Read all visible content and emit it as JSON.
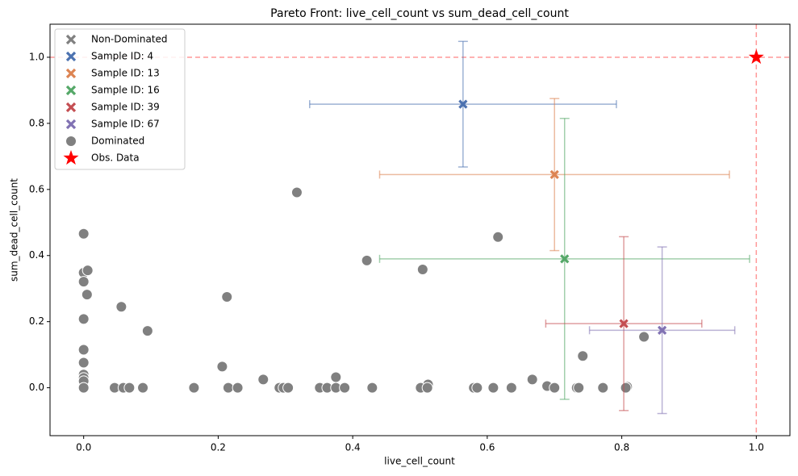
{
  "chart_data": {
    "type": "scatter",
    "title": "Pareto Front: live_cell_count vs sum_dead_cell_count",
    "x_label": "live_cell_count",
    "y_label": "sum_dead_cell_count",
    "xlim": [
      -0.05,
      1.05
    ],
    "ylim": [
      -0.145,
      1.1
    ],
    "xticks": [
      {
        "value": 0,
        "label": "0.0"
      },
      {
        "value": 0.2,
        "label": "0.2"
      },
      {
        "value": 0.4,
        "label": "0.4"
      },
      {
        "value": 0.6,
        "label": "0.6"
      },
      {
        "value": 0.8,
        "label": "0.8"
      },
      {
        "value": 1,
        "label": "1.0"
      }
    ],
    "yticks": [
      {
        "value": 0,
        "label": "0.0"
      },
      {
        "value": 0.2,
        "label": "0.2"
      },
      {
        "value": 0.4,
        "label": "0.4"
      },
      {
        "value": 0.6,
        "label": "0.6"
      },
      {
        "value": 0.8,
        "label": "0.8"
      },
      {
        "value": 1,
        "label": "1.0"
      }
    ],
    "legend_position": "upper left",
    "non_dominated_label": "Non-Dominated",
    "non_dominated_color": "#808080",
    "reference_line_color": "#ff9999",
    "series": [
      {
        "name": "Sample ID: 4",
        "color": "#4c72b0",
        "marker": "x",
        "x": [
          0.564
        ],
        "y": [
          0.858
        ],
        "xerr": [
          0.228
        ],
        "yerr": [
          0.19
        ]
      },
      {
        "name": "Sample ID: 13",
        "color": "#dd8452",
        "marker": "x",
        "x": [
          0.7
        ],
        "y": [
          0.645
        ],
        "xerr": [
          0.26
        ],
        "yerr": [
          0.23
        ]
      },
      {
        "name": "Sample ID: 16",
        "color": "#55a868",
        "marker": "x",
        "x": [
          0.715
        ],
        "y": [
          0.39
        ],
        "xerr": [
          0.275
        ],
        "yerr": [
          0.425
        ]
      },
      {
        "name": "Sample ID: 39",
        "color": "#c44e52",
        "marker": "x",
        "x": [
          0.803
        ],
        "y": [
          0.194
        ],
        "xerr": [
          0.116
        ],
        "yerr": [
          0.263
        ]
      },
      {
        "name": "Sample ID: 67",
        "color": "#8172b3",
        "marker": "x",
        "x": [
          0.86
        ],
        "y": [
          0.174
        ],
        "xerr": [
          0.108
        ],
        "yerr": [
          0.252
        ]
      },
      {
        "name": "Dominated",
        "color": "#808080",
        "marker": "circle",
        "x": [
          0,
          0,
          0.006,
          0,
          0.005,
          0,
          0,
          0,
          0,
          0,
          0,
          0,
          0.056,
          0.095,
          0.213,
          0.206,
          0.317,
          0.421,
          0.504,
          0.616,
          0.267,
          0.375,
          0.667,
          0.742,
          0.833,
          0.512,
          0.689,
          0.808,
          0.046,
          0.059,
          0.068,
          0.088,
          0.164,
          0.215,
          0.229,
          0.291,
          0.297,
          0.304,
          0.351,
          0.362,
          0.375,
          0.388,
          0.429,
          0.501,
          0.511,
          0.58,
          0.585,
          0.609,
          0.636,
          0.7,
          0.733,
          0.736,
          0.772,
          0.806
        ],
        "y": [
          0.466,
          0.348,
          0.355,
          0.321,
          0.282,
          0.208,
          0.115,
          0.076,
          0.04,
          0.03,
          0.02,
          0,
          0.245,
          0.172,
          0.275,
          0.064,
          0.591,
          0.385,
          0.358,
          0.456,
          0.025,
          0.032,
          0.025,
          0.096,
          0.154,
          0.01,
          0.005,
          0.003,
          0,
          0,
          0,
          0,
          0,
          0,
          0,
          0,
          0,
          0,
          0,
          0,
          0,
          0,
          0,
          0,
          0,
          0,
          0,
          0,
          0,
          0,
          0,
          0,
          0,
          0
        ]
      },
      {
        "name": "Obs. Data",
        "color": "#ff0000",
        "marker": "star",
        "x": [
          1
        ],
        "y": [
          1
        ]
      }
    ]
  }
}
